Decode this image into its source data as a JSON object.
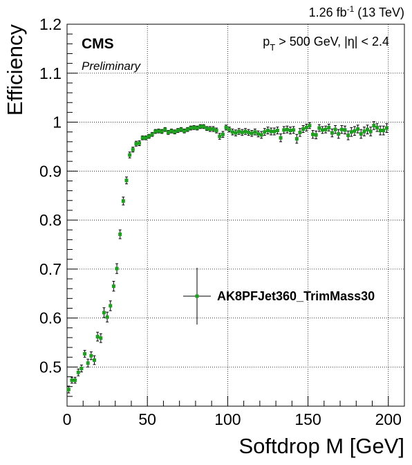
{
  "chart_data": {
    "type": "scatter",
    "title": "",
    "xlabel": "Softdrop M [GeV]",
    "ylabel": "Efficiency",
    "xlim": [
      0,
      210
    ],
    "ylim": [
      0.42,
      1.2
    ],
    "xticks": [
      0,
      50,
      100,
      150,
      200
    ],
    "xtick_labels": [
      "0",
      "50",
      "100",
      "150",
      "200"
    ],
    "yticks": [
      0.5,
      0.6,
      0.7,
      0.8,
      0.9,
      1.0,
      1.1,
      1.2
    ],
    "ytick_labels": [
      "0.5",
      "0.6",
      "0.7",
      "0.8",
      "0.9",
      "1",
      "1.1",
      "1.2"
    ],
    "grid": true,
    "legend_position": "right",
    "annotations": {
      "lumi_main": "1.26 fb",
      "lumi_sup": "-1",
      "lumi_energy": " (13 TeV)",
      "experiment": "CMS",
      "status": "Preliminary",
      "selection_p": "p",
      "selection_sub": "T",
      "selection_rest": " > 500 GeV, |η| < 2.4"
    },
    "colors": {
      "marker": "#1f9f1f",
      "errorbar": "#000000"
    },
    "series": [
      {
        "name": "AK8PFJet360_TrimMass30",
        "x": [
          1,
          3,
          5,
          7,
          9,
          11,
          13,
          15,
          17,
          19,
          21,
          23,
          25,
          27,
          29,
          31,
          33,
          35,
          37,
          39,
          41,
          43,
          45,
          47,
          49,
          51,
          53,
          55,
          57,
          59,
          61,
          63,
          65,
          67,
          69,
          71,
          73,
          75,
          77,
          79,
          81,
          83,
          85,
          87,
          89,
          91,
          93,
          95,
          97,
          99,
          101,
          103,
          105,
          107,
          109,
          111,
          113,
          115,
          117,
          119,
          121,
          123,
          125,
          127,
          129,
          131,
          133,
          135,
          137,
          139,
          141,
          143,
          145,
          147,
          149,
          151,
          153,
          155,
          157,
          159,
          161,
          163,
          165,
          167,
          169,
          171,
          173,
          175,
          177,
          179,
          181,
          183,
          185,
          187,
          189,
          191,
          193,
          195,
          197,
          199
        ],
        "y": [
          0.454,
          0.473,
          0.473,
          0.489,
          0.497,
          0.527,
          0.508,
          0.523,
          0.514,
          0.562,
          0.559,
          0.611,
          0.602,
          0.625,
          0.665,
          0.701,
          0.771,
          0.839,
          0.881,
          0.933,
          0.944,
          0.956,
          0.957,
          0.968,
          0.968,
          0.971,
          0.975,
          0.981,
          0.982,
          0.981,
          0.985,
          0.979,
          0.982,
          0.98,
          0.983,
          0.985,
          0.982,
          0.985,
          0.988,
          0.989,
          0.988,
          0.991,
          0.991,
          0.987,
          0.986,
          0.986,
          0.983,
          0.971,
          0.975,
          0.989,
          0.985,
          0.98,
          0.978,
          0.981,
          0.979,
          0.981,
          0.979,
          0.977,
          0.98,
          0.976,
          0.974,
          0.98,
          0.983,
          0.981,
          0.981,
          0.983,
          0.968,
          0.984,
          0.985,
          0.983,
          0.984,
          0.966,
          0.979,
          0.986,
          0.989,
          0.993,
          0.975,
          0.974,
          0.988,
          0.984,
          0.985,
          0.989,
          0.978,
          0.985,
          0.976,
          0.985,
          0.984,
          0.973,
          0.98,
          0.982,
          0.986,
          0.976,
          0.981,
          0.985,
          0.981,
          0.993,
          0.989,
          0.983,
          0.983,
          0.988
        ],
        "yerr": [
          0.007,
          0.006,
          0.006,
          0.007,
          0.007,
          0.007,
          0.008,
          0.008,
          0.009,
          0.009,
          0.009,
          0.01,
          0.01,
          0.01,
          0.01,
          0.01,
          0.009,
          0.008,
          0.007,
          0.006,
          0.005,
          0.005,
          0.005,
          0.004,
          0.004,
          0.004,
          0.004,
          0.004,
          0.004,
          0.004,
          0.004,
          0.004,
          0.004,
          0.004,
          0.004,
          0.004,
          0.004,
          0.004,
          0.004,
          0.004,
          0.004,
          0.004,
          0.004,
          0.004,
          0.005,
          0.005,
          0.005,
          0.006,
          0.006,
          0.005,
          0.005,
          0.006,
          0.006,
          0.006,
          0.006,
          0.006,
          0.006,
          0.006,
          0.006,
          0.006,
          0.007,
          0.007,
          0.007,
          0.007,
          0.007,
          0.007,
          0.008,
          0.007,
          0.007,
          0.007,
          0.007,
          0.009,
          0.008,
          0.007,
          0.007,
          0.006,
          0.008,
          0.008,
          0.007,
          0.007,
          0.007,
          0.007,
          0.008,
          0.008,
          0.009,
          0.008,
          0.008,
          0.009,
          0.009,
          0.009,
          0.008,
          0.009,
          0.009,
          0.009,
          0.009,
          0.008,
          0.008,
          0.009,
          0.009,
          0.009
        ]
      }
    ]
  }
}
